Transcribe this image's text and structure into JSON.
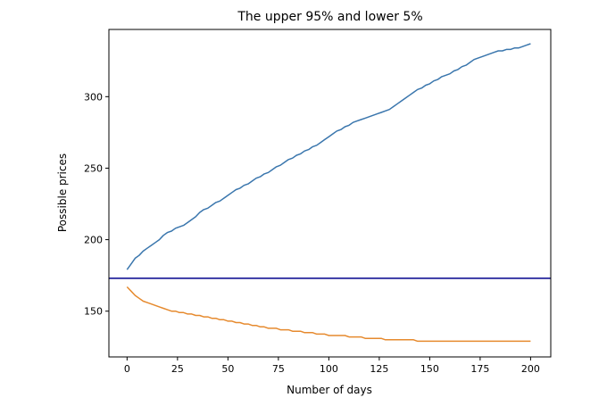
{
  "chart_data": {
    "type": "line",
    "title": "The upper 95% and lower 5%",
    "xlabel": "Number of days",
    "ylabel": "Possible prices",
    "xlim": [
      -9,
      210
    ],
    "ylim": [
      118,
      347
    ],
    "xticks": [
      0,
      25,
      50,
      75,
      100,
      125,
      150,
      175,
      200
    ],
    "yticks": [
      150,
      200,
      250,
      300
    ],
    "grid": false,
    "legend": "none",
    "colors": {
      "upper": "#3a76ad",
      "lower": "#e68a2e",
      "reference": "#00008b"
    },
    "reference_line": {
      "y": 173
    },
    "series": [
      {
        "key": "upper",
        "x": [
          0,
          2,
          4,
          6,
          8,
          10,
          12,
          14,
          16,
          18,
          20,
          22,
          24,
          26,
          28,
          30,
          32,
          34,
          36,
          38,
          40,
          42,
          44,
          46,
          48,
          50,
          52,
          54,
          56,
          58,
          60,
          62,
          64,
          66,
          68,
          70,
          72,
          74,
          76,
          78,
          80,
          82,
          84,
          86,
          88,
          90,
          92,
          94,
          96,
          98,
          100,
          102,
          104,
          106,
          108,
          110,
          112,
          114,
          116,
          118,
          120,
          122,
          124,
          126,
          128,
          130,
          132,
          134,
          136,
          138,
          140,
          142,
          144,
          146,
          148,
          150,
          152,
          154,
          156,
          158,
          160,
          162,
          164,
          166,
          168,
          170,
          172,
          174,
          176,
          178,
          180,
          182,
          184,
          186,
          188,
          190,
          192,
          194,
          196,
          198,
          200
        ],
        "values": [
          179,
          183,
          187,
          189,
          192,
          194,
          196,
          198,
          200,
          203,
          205,
          206,
          208,
          209,
          210,
          212,
          214,
          216,
          219,
          221,
          222,
          224,
          226,
          227,
          229,
          231,
          233,
          235,
          236,
          238,
          239,
          241,
          243,
          244,
          246,
          247,
          249,
          251,
          252,
          254,
          256,
          257,
          259,
          260,
          262,
          263,
          265,
          266,
          268,
          270,
          272,
          274,
          276,
          277,
          279,
          280,
          282,
          283,
          284,
          285,
          286,
          287,
          288,
          289,
          290,
          291,
          293,
          295,
          297,
          299,
          301,
          303,
          305,
          306,
          308,
          309,
          311,
          312,
          314,
          315,
          316,
          318,
          319,
          321,
          322,
          324,
          326,
          327,
          328,
          329,
          330,
          331,
          332,
          332,
          333,
          333,
          334,
          334,
          335,
          336,
          337
        ]
      },
      {
        "key": "lower",
        "x": [
          0,
          2,
          4,
          6,
          8,
          10,
          12,
          14,
          16,
          18,
          20,
          22,
          24,
          26,
          28,
          30,
          32,
          34,
          36,
          38,
          40,
          42,
          44,
          46,
          48,
          50,
          52,
          54,
          56,
          58,
          60,
          62,
          64,
          66,
          68,
          70,
          72,
          74,
          76,
          78,
          80,
          82,
          84,
          86,
          88,
          90,
          92,
          94,
          96,
          98,
          100,
          102,
          104,
          106,
          108,
          110,
          112,
          114,
          116,
          118,
          120,
          122,
          124,
          126,
          128,
          130,
          132,
          134,
          136,
          138,
          140,
          142,
          144,
          146,
          148,
          150,
          152,
          154,
          156,
          158,
          160,
          162,
          164,
          166,
          168,
          170,
          172,
          174,
          176,
          178,
          180,
          182,
          184,
          186,
          188,
          190,
          192,
          194,
          196,
          198,
          200
        ],
        "values": [
          167,
          164,
          161,
          159,
          157,
          156,
          155,
          154,
          153,
          152,
          151,
          150,
          150,
          149,
          149,
          148,
          148,
          147,
          147,
          146,
          146,
          145,
          145,
          144,
          144,
          143,
          143,
          142,
          142,
          141,
          141,
          140,
          140,
          139,
          139,
          138,
          138,
          138,
          137,
          137,
          137,
          136,
          136,
          136,
          135,
          135,
          135,
          134,
          134,
          134,
          133,
          133,
          133,
          133,
          133,
          132,
          132,
          132,
          132,
          131,
          131,
          131,
          131,
          131,
          130,
          130,
          130,
          130,
          130,
          130,
          130,
          130,
          129,
          129,
          129,
          129,
          129,
          129,
          129,
          129,
          129,
          129,
          129,
          129,
          129,
          129,
          129,
          129,
          129,
          129,
          129,
          129,
          129,
          129,
          129,
          129,
          129,
          129,
          129,
          129,
          129
        ]
      }
    ]
  }
}
